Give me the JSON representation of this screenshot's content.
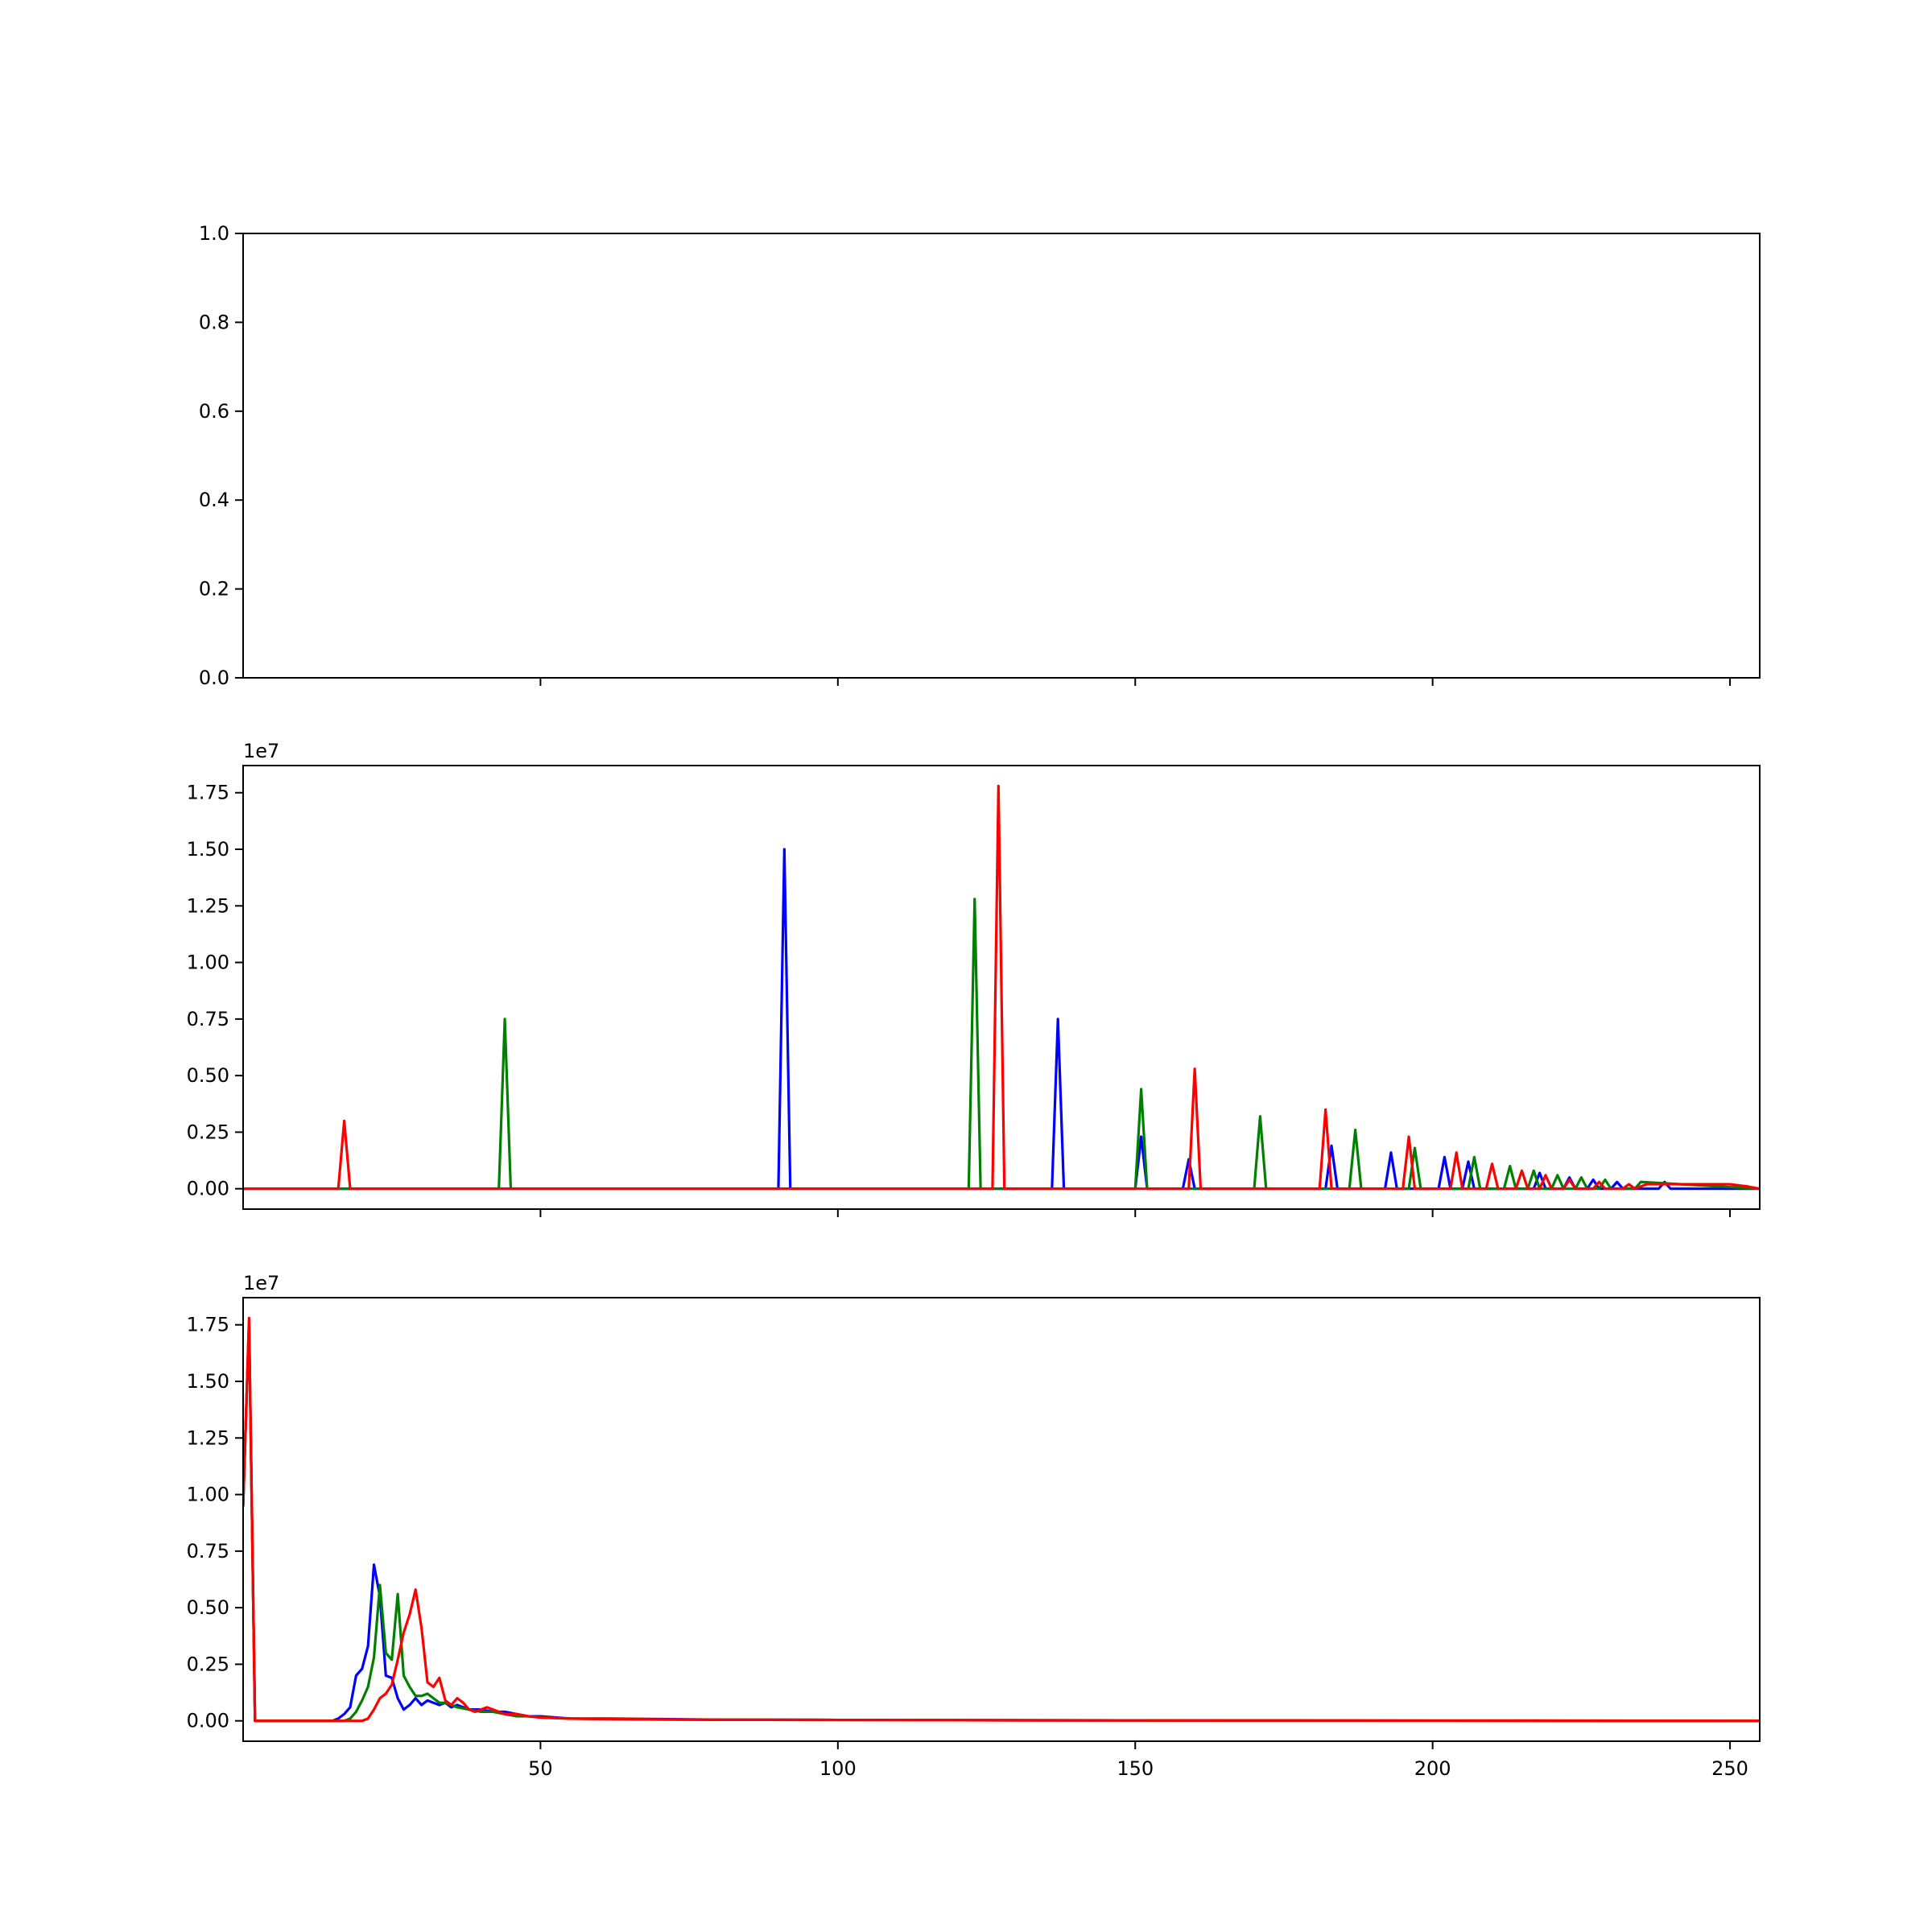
{
  "colors": {
    "blue": "#0000ff",
    "green": "#008000",
    "red": "#ff0000"
  },
  "chart_data": [
    {
      "type": "line",
      "title": "",
      "xlabel": "",
      "ylabel": "",
      "xlim": [
        0,
        255
      ],
      "ylim": [
        0,
        1
      ],
      "x_ticks": [
        50,
        100,
        150,
        200,
        250
      ],
      "x_tick_labels_shown": false,
      "y_ticks": [
        0.0,
        0.2,
        0.4,
        0.6,
        0.8,
        1.0
      ],
      "y_tick_labels": [
        "0.0",
        "0.2",
        "0.4",
        "0.6",
        "0.8",
        "1.0"
      ],
      "y_offset_label": "",
      "series": []
    },
    {
      "type": "line",
      "title": "",
      "xlabel": "",
      "ylabel": "",
      "xlim": [
        0,
        255
      ],
      "ylim": [
        -0.09,
        1.87
      ],
      "x_ticks": [
        50,
        100,
        150,
        200,
        250
      ],
      "x_tick_labels_shown": false,
      "y_ticks": [
        0.0,
        0.25,
        0.5,
        0.75,
        1.0,
        1.25,
        1.5,
        1.75
      ],
      "y_tick_labels": [
        "0.00",
        "0.25",
        "0.50",
        "0.75",
        "1.00",
        "1.25",
        "1.50",
        "1.75"
      ],
      "y_offset_label": "1e7",
      "series": [
        {
          "color": "blue",
          "x": [
            0,
            90,
            91,
            92,
            136,
            137,
            138,
            150,
            151,
            152,
            158,
            159,
            160,
            182,
            183,
            184,
            192,
            193,
            194,
            201,
            202,
            203,
            205,
            206,
            207,
            217,
            218,
            219,
            222,
            223,
            224,
            226,
            227,
            228,
            230,
            231,
            232,
            238,
            239,
            240,
            255
          ],
          "y": [
            0,
            0,
            1.5,
            0,
            0,
            0.75,
            0,
            0,
            0.23,
            0,
            0,
            0.13,
            0,
            0,
            0.19,
            0,
            0,
            0.16,
            0,
            0,
            0.14,
            0,
            0,
            0.12,
            0,
            0,
            0.07,
            0,
            0,
            0.05,
            0,
            0,
            0.04,
            0,
            0,
            0.03,
            0,
            0,
            0.03,
            0,
            0
          ]
        },
        {
          "color": "green",
          "x": [
            0,
            43,
            44,
            45,
            122,
            123,
            124,
            150,
            151,
            152,
            170,
            171,
            172,
            186,
            187,
            188,
            196,
            197,
            198,
            206,
            207,
            208,
            212,
            213,
            214,
            216,
            217,
            218,
            220,
            221,
            222,
            224,
            225,
            226,
            228,
            229,
            230,
            234,
            235,
            255
          ],
          "y": [
            0,
            0,
            0.75,
            0,
            0,
            1.28,
            0,
            0,
            0.44,
            0,
            0,
            0.32,
            0,
            0,
            0.26,
            0,
            0,
            0.18,
            0,
            0,
            0.14,
            0,
            0,
            0.1,
            0,
            0,
            0.08,
            0,
            0,
            0.06,
            0,
            0,
            0.05,
            0,
            0,
            0.04,
            0,
            0,
            0.03,
            0
          ]
        },
        {
          "color": "red",
          "x": [
            0,
            16,
            17,
            18,
            126,
            127,
            128,
            159,
            160,
            161,
            181,
            182,
            183,
            195,
            196,
            197,
            203,
            204,
            205,
            209,
            210,
            211,
            214,
            215,
            216,
            218,
            219,
            220,
            222,
            223,
            224,
            227,
            228,
            229,
            232,
            233,
            234,
            236,
            240,
            245,
            250,
            253,
            255
          ],
          "y": [
            0,
            0,
            0.3,
            0,
            0,
            1.78,
            0,
            0,
            0.53,
            0,
            0,
            0.35,
            0,
            0,
            0.23,
            0,
            0,
            0.16,
            0,
            0,
            0.11,
            0,
            0,
            0.08,
            0,
            0,
            0.06,
            0,
            0,
            0.04,
            0,
            0,
            0.03,
            0,
            0,
            0.02,
            0,
            0.02,
            0.02,
            0.02,
            0.02,
            0.01,
            0
          ]
        }
      ]
    },
    {
      "type": "line",
      "title": "",
      "xlabel": "",
      "ylabel": "",
      "xlim": [
        0,
        255
      ],
      "ylim": [
        -0.09,
        1.87
      ],
      "x_ticks": [
        50,
        100,
        150,
        200,
        250
      ],
      "x_tick_labels_shown": true,
      "x_tick_labels": [
        "50",
        "100",
        "150",
        "200",
        "250"
      ],
      "y_ticks": [
        0.0,
        0.25,
        0.5,
        0.75,
        1.0,
        1.25,
        1.5,
        1.75
      ],
      "y_tick_labels": [
        "0.00",
        "0.25",
        "0.50",
        "0.75",
        "1.00",
        "1.25",
        "1.50",
        "1.75"
      ],
      "y_offset_label": "1e7",
      "series": [
        {
          "color": "blue",
          "x": [
            0,
            1,
            2,
            15,
            16,
            17,
            18,
            19,
            20,
            21,
            22,
            23,
            24,
            25,
            26,
            27,
            28,
            29,
            30,
            31,
            32,
            33,
            34,
            35,
            36,
            38,
            40,
            42,
            44,
            46,
            48,
            50,
            55,
            60,
            70,
            80,
            100,
            120,
            150,
            200,
            255
          ],
          "y": [
            0.95,
            1.76,
            0,
            0,
            0.01,
            0.03,
            0.06,
            0.2,
            0.23,
            0.33,
            0.69,
            0.55,
            0.2,
            0.19,
            0.1,
            0.05,
            0.07,
            0.1,
            0.07,
            0.09,
            0.08,
            0.07,
            0.08,
            0.06,
            0.07,
            0.05,
            0.05,
            0.04,
            0.04,
            0.03,
            0.02,
            0.02,
            0.01,
            0.01,
            0.008,
            0.005,
            0.004,
            0.003,
            0.002,
            0.001,
            0
          ]
        },
        {
          "color": "green",
          "x": [
            0,
            1,
            2,
            17,
            18,
            19,
            20,
            21,
            22,
            23,
            24,
            25,
            26,
            27,
            28,
            29,
            30,
            31,
            32,
            33,
            34,
            35,
            36,
            38,
            40,
            42,
            44,
            46,
            48,
            50,
            55,
            60,
            70,
            80,
            100,
            120,
            150,
            200,
            255
          ],
          "y": [
            0.95,
            1.76,
            0,
            0,
            0.01,
            0.04,
            0.09,
            0.15,
            0.28,
            0.6,
            0.3,
            0.27,
            0.56,
            0.2,
            0.15,
            0.11,
            0.11,
            0.12,
            0.1,
            0.08,
            0.08,
            0.07,
            0.06,
            0.05,
            0.04,
            0.04,
            0.03,
            0.02,
            0.02,
            0.015,
            0.01,
            0.008,
            0.006,
            0.005,
            0.004,
            0.003,
            0.002,
            0.001,
            0
          ]
        },
        {
          "color": "red",
          "x": [
            0,
            1,
            2,
            20,
            21,
            22,
            23,
            24,
            25,
            26,
            27,
            28,
            29,
            30,
            31,
            32,
            33,
            34,
            35,
            36,
            37,
            38,
            39,
            40,
            41,
            42,
            44,
            46,
            48,
            50,
            55,
            60,
            70,
            80,
            100,
            120,
            150,
            200,
            255
          ],
          "y": [
            0.95,
            1.78,
            0,
            0,
            0.01,
            0.05,
            0.1,
            0.12,
            0.16,
            0.27,
            0.39,
            0.47,
            0.58,
            0.41,
            0.17,
            0.15,
            0.19,
            0.09,
            0.07,
            0.1,
            0.08,
            0.05,
            0.04,
            0.05,
            0.06,
            0.05,
            0.03,
            0.03,
            0.02,
            0.015,
            0.01,
            0.008,
            0.006,
            0.005,
            0.004,
            0.003,
            0.002,
            0.001,
            0
          ]
        }
      ]
    }
  ]
}
